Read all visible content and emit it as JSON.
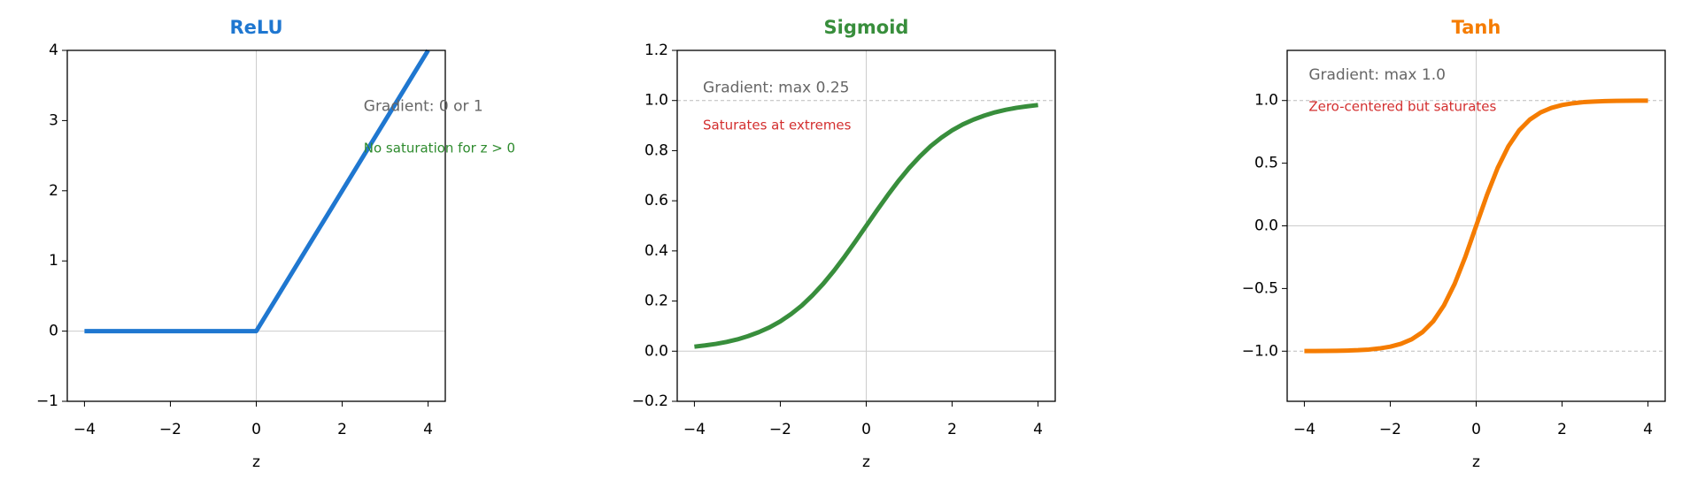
{
  "chart_data": [
    {
      "type": "line",
      "title": "ReLU",
      "title_color": "#1f77d0",
      "xlabel": "z",
      "color": "#1f77d0",
      "x": [
        -4,
        -3.75,
        -3.5,
        -3.25,
        -3,
        -2.75,
        -2.5,
        -2.25,
        -2,
        -1.75,
        -1.5,
        -1.25,
        -1,
        -0.75,
        -0.5,
        -0.25,
        0,
        0.25,
        0.5,
        0.75,
        1,
        1.25,
        1.5,
        1.75,
        2,
        2.25,
        2.5,
        2.75,
        3,
        3.25,
        3.5,
        3.75,
        4
      ],
      "values": [
        0,
        0,
        0,
        0,
        0,
        0,
        0,
        0,
        0,
        0,
        0,
        0,
        0,
        0,
        0,
        0,
        0,
        0.25,
        0.5,
        0.75,
        1,
        1.25,
        1.5,
        1.75,
        2,
        2.25,
        2.5,
        2.75,
        3,
        3.25,
        3.5,
        3.75,
        4
      ],
      "xlim": [
        -4.4,
        4.4
      ],
      "ylim": [
        -1,
        4
      ],
      "xticks": [
        {
          "value": -4,
          "label": "−4"
        },
        {
          "value": -2,
          "label": "−2"
        },
        0,
        2,
        4
      ],
      "yticks": [
        {
          "value": -1,
          "label": "−1"
        },
        0,
        1,
        2,
        3,
        4
      ],
      "zero_lines": true,
      "dashed_hlines": [],
      "annotations": [
        {
          "text": "Gradient: 0 or 1",
          "color": "#666666"
        },
        {
          "text": "No saturation for z > 0",
          "color": "#2e8b2e"
        }
      ]
    },
    {
      "type": "line",
      "title": "Sigmoid",
      "title_color": "#388e3c",
      "xlabel": "z",
      "color": "#388e3c",
      "x": [
        -4,
        -3.75,
        -3.5,
        -3.25,
        -3,
        -2.75,
        -2.5,
        -2.25,
        -2,
        -1.75,
        -1.5,
        -1.25,
        -1,
        -0.75,
        -0.5,
        -0.25,
        0,
        0.25,
        0.5,
        0.75,
        1,
        1.25,
        1.5,
        1.75,
        2,
        2.25,
        2.5,
        2.75,
        3,
        3.25,
        3.5,
        3.75,
        4
      ],
      "values": [
        0.018,
        0.023,
        0.029,
        0.037,
        0.047,
        0.06,
        0.076,
        0.095,
        0.119,
        0.148,
        0.182,
        0.223,
        0.269,
        0.321,
        0.378,
        0.438,
        0.5,
        0.562,
        0.622,
        0.679,
        0.731,
        0.777,
        0.818,
        0.852,
        0.881,
        0.905,
        0.924,
        0.94,
        0.953,
        0.963,
        0.971,
        0.977,
        0.982
      ],
      "xlim": [
        -4.4,
        4.4
      ],
      "ylim": [
        -0.2,
        1.2
      ],
      "xticks": [
        {
          "value": -4,
          "label": "−4"
        },
        {
          "value": -2,
          "label": "−2"
        },
        0,
        2,
        4
      ],
      "yticks": [
        {
          "value": -0.2,
          "label": "−0.2"
        },
        {
          "value": 0,
          "label": "0.0"
        },
        0.2,
        0.4,
        0.6,
        0.8,
        {
          "value": 1,
          "label": "1.0"
        },
        1.2
      ],
      "zero_lines": true,
      "dashed_hlines": [
        1
      ],
      "annotations": [
        {
          "text": "Gradient: max 0.25",
          "color": "#666666"
        },
        {
          "text": "Saturates at extremes",
          "color": "#d32f2f"
        }
      ]
    },
    {
      "type": "line",
      "title": "Tanh",
      "title_color": "#f57c00",
      "xlabel": "z",
      "color": "#f57c00",
      "x": [
        -4,
        -3.75,
        -3.5,
        -3.25,
        -3,
        -2.75,
        -2.5,
        -2.25,
        -2,
        -1.75,
        -1.5,
        -1.25,
        -1,
        -0.75,
        -0.5,
        -0.25,
        0,
        0.25,
        0.5,
        0.75,
        1,
        1.25,
        1.5,
        1.75,
        2,
        2.25,
        2.5,
        2.75,
        3,
        3.25,
        3.5,
        3.75,
        4
      ],
      "values": [
        -0.999,
        -0.999,
        -0.998,
        -0.997,
        -0.995,
        -0.992,
        -0.987,
        -0.978,
        -0.964,
        -0.941,
        -0.905,
        -0.848,
        -0.762,
        -0.635,
        -0.462,
        -0.245,
        0,
        0.245,
        0.462,
        0.635,
        0.762,
        0.848,
        0.905,
        0.941,
        0.964,
        0.978,
        0.987,
        0.992,
        0.995,
        0.997,
        0.998,
        0.999,
        0.999
      ],
      "xlim": [
        -4.4,
        4.4
      ],
      "ylim": [
        -1.4,
        1.4
      ],
      "xticks": [
        {
          "value": -4,
          "label": "−4"
        },
        {
          "value": -2,
          "label": "−2"
        },
        0,
        2,
        4
      ],
      "yticks": [
        {
          "value": -1,
          "label": "−1.0"
        },
        {
          "value": -0.5,
          "label": "−0.5"
        },
        {
          "value": 0,
          "label": "0.0"
        },
        0.5,
        {
          "value": 1,
          "label": "1.0"
        }
      ],
      "zero_lines": true,
      "dashed_hlines": [
        1,
        -1
      ],
      "annotations": [
        {
          "text": "Gradient: max 1.0",
          "color": "#666666"
        },
        {
          "text": "Zero-centered but saturates",
          "color": "#d32f2f"
        }
      ]
    }
  ]
}
